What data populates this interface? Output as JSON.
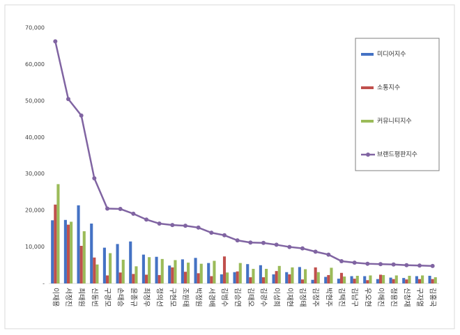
{
  "chart_data": {
    "type": "bar",
    "categories": [
      "이재용",
      "서정진",
      "최태원",
      "신동빈",
      "구광모",
      "손태승",
      "윤종규",
      "최정우",
      "정의선",
      "구현모",
      "조원태",
      "박정원",
      "서경배",
      "김범수",
      "김승연",
      "김태오",
      "김광수",
      "이성희",
      "이재현",
      "김정태",
      "김정주",
      "박현주",
      "김택진",
      "김남구",
      "우오현",
      "이해진",
      "정용진",
      "신창재",
      "구자열",
      "김홍국"
    ],
    "series": [
      {
        "name": "미디어지수",
        "color": "#4472c4",
        "values": [
          17300,
          17400,
          21400,
          16400,
          9800,
          10800,
          11500,
          7900,
          7300,
          4900,
          6600,
          7000,
          5600,
          2500,
          3100,
          5300,
          5000,
          2500,
          3100,
          4500,
          1000,
          1800,
          1300,
          2000,
          2000,
          1200,
          1600,
          1500,
          2000,
          2100
        ]
      },
      {
        "name": "소통지수",
        "color": "#c0504d",
        "values": [
          21600,
          16100,
          10300,
          7100,
          2200,
          3000,
          2600,
          2400,
          2300,
          4400,
          3200,
          2800,
          2000,
          7400,
          3300,
          1700,
          1700,
          3400,
          2500,
          1100,
          4400,
          2300,
          2900,
          1300,
          900,
          2400,
          1200,
          1100,
          1200,
          1200
        ]
      },
      {
        "name": "커뮤니티지수",
        "color": "#9bbb59",
        "values": [
          27200,
          16900,
          14300,
          5200,
          8300,
          6500,
          4700,
          7200,
          6700,
          6400,
          5700,
          5400,
          6200,
          3000,
          5600,
          4000,
          4000,
          4800,
          4400,
          3900,
          3100,
          4300,
          1900,
          2100,
          2200,
          2300,
          2200,
          2100,
          2200,
          1700
        ]
      },
      {
        "name": "브랜드평판지수",
        "color": "#8064a2",
        "type": "line",
        "values": [
          66300,
          50500,
          46000,
          28800,
          20500,
          20400,
          19100,
          17500,
          16400,
          16000,
          15800,
          15300,
          13900,
          13200,
          11800,
          11200,
          11100,
          10600,
          10000,
          9600,
          8700,
          7900,
          6100,
          5700,
          5400,
          5300,
          5200,
          5000,
          4900,
          4800
        ]
      }
    ],
    "ylim": [
      0,
      70000
    ],
    "yticks": [
      {
        "value": 0,
        "label": "-"
      },
      {
        "value": 10000,
        "label": "10,000"
      },
      {
        "value": 20000,
        "label": "20,000"
      },
      {
        "value": 30000,
        "label": "30,000"
      },
      {
        "value": 40000,
        "label": "40,000"
      },
      {
        "value": 50000,
        "label": "50,000"
      },
      {
        "value": 60000,
        "label": "60,000"
      },
      {
        "value": 70000,
        "label": "70,000"
      }
    ],
    "legend": "right"
  }
}
